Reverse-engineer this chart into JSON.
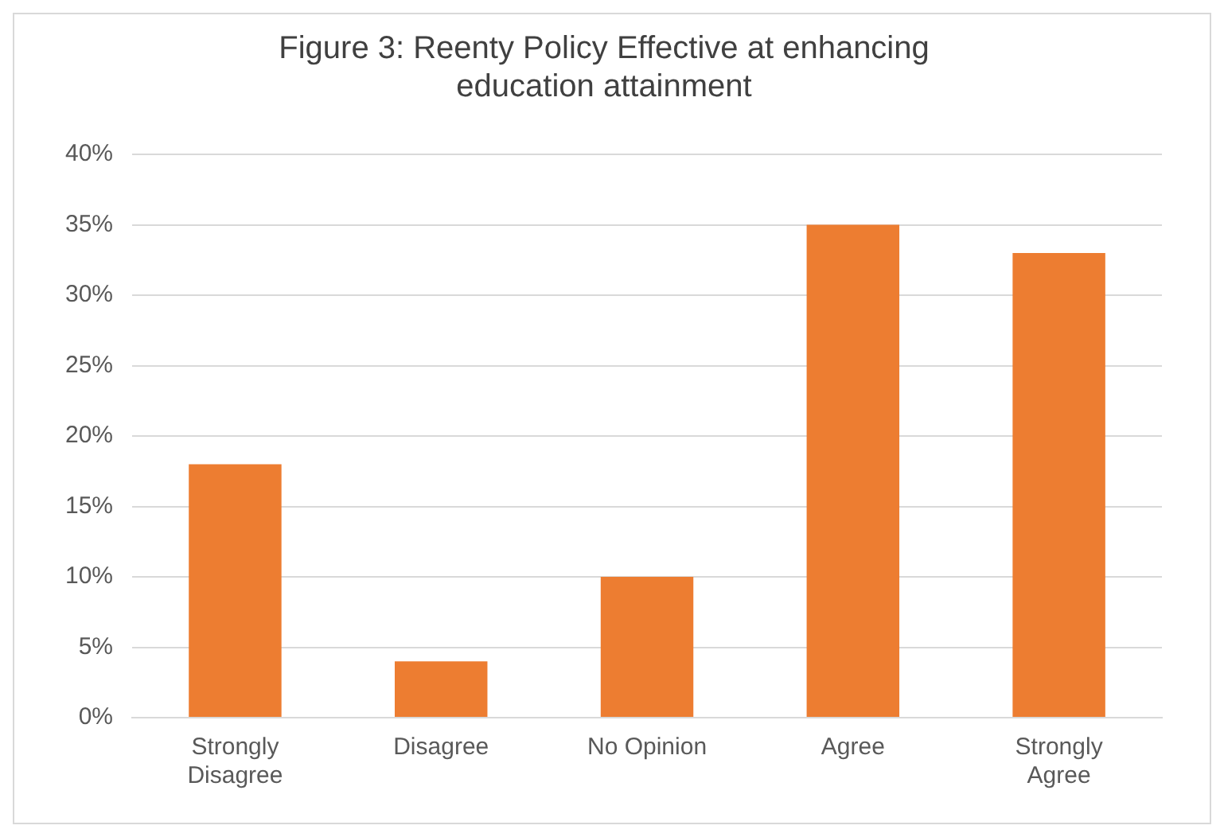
{
  "chart_data": {
    "type": "bar",
    "title": "Figure 3: Reenty Policy Effective at enhancing\neducation attainment",
    "categories": [
      "Strongly Disagree",
      "Disagree",
      "No Opinion",
      "Agree",
      "Strongly Agree"
    ],
    "values": [
      18,
      4,
      10,
      35,
      33
    ],
    "color": "#ed7d31",
    "ylim": [
      0,
      40
    ],
    "yticks": [
      {
        "value": 0,
        "label": "0%"
      },
      {
        "value": 5,
        "label": "5%"
      },
      {
        "value": 10,
        "label": "10%"
      },
      {
        "value": 15,
        "label": "15%"
      },
      {
        "value": 20,
        "label": "20%"
      },
      {
        "value": 25,
        "label": "25%"
      },
      {
        "value": 30,
        "label": "30%"
      },
      {
        "value": 35,
        "label": "35%"
      },
      {
        "value": 40,
        "label": "40%"
      }
    ],
    "grid": "y",
    "legend": false
  }
}
